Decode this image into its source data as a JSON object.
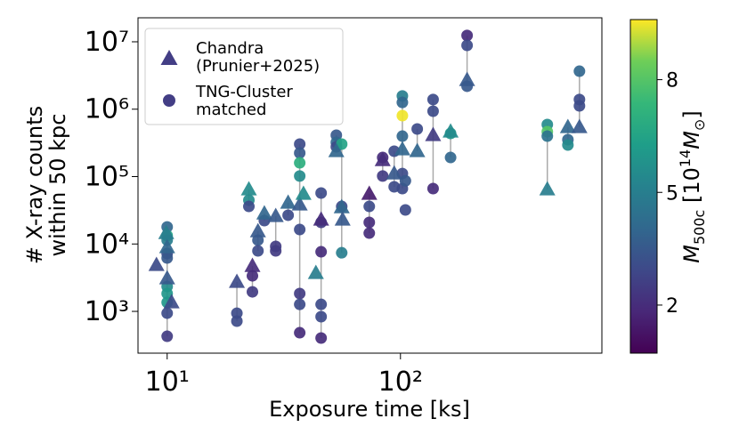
{
  "chart_data": {
    "type": "scatter",
    "xlabel": "Exposure time [ks]",
    "ylabel": "# X-ray counts\nwithin 50 kpc",
    "xscale": "log",
    "yscale": "log",
    "xlim": [
      7.5,
      730
    ],
    "ylim": [
      240,
      22700000
    ],
    "xticks": [
      {
        "value": 10,
        "label": "10¹"
      },
      {
        "value": 100,
        "label": "10²"
      }
    ],
    "yticks": [
      {
        "value": 1000,
        "label": "10³"
      },
      {
        "value": 10000,
        "label": "10⁴"
      },
      {
        "value": 100000,
        "label": "10⁵"
      },
      {
        "value": 1000000,
        "label": "10⁶"
      },
      {
        "value": 10000000,
        "label": "10⁷"
      }
    ],
    "colormap": "viridis",
    "clim": [
      0.72,
      9.6
    ],
    "cticks": [
      2,
      5,
      8
    ],
    "colorbar_label": [
      {
        "text": "M"
      },
      {
        "text": "500c",
        "sub": true
      },
      {
        "text": " [10"
      },
      {
        "text": "14",
        "sup": true
      },
      {
        "text": "M"
      },
      {
        "text": "⊙",
        "sub": true
      },
      {
        "text": "]"
      }
    ],
    "legend": "upper left",
    "series": [
      {
        "name": "Chandra\n(Prunier+2025)",
        "marker": "triangle",
        "color": "#433e85",
        "x": [
          9.0,
          9.91,
          10,
          10,
          10.45,
          19.9,
          22.4,
          23.2,
          24.5,
          26.1,
          29.2,
          33.0,
          37.0,
          38.4,
          45.7,
          43.4,
          53.1,
          56.0,
          56.5,
          73.5,
          83.9,
          94.0,
          101.9,
          118,
          138,
          164,
          193,
          426,
          522,
          585
        ],
        "y": [
          4860,
          14500,
          8920,
          3080,
          1360,
          2730,
          64400,
          4710,
          15400,
          28300,
          25900,
          40800,
          38400,
          55300,
          22900,
          3700,
          238000,
          35000,
          22900,
          55300,
          175000,
          111000,
          253000,
          238000,
          411000,
          464000,
          2700000,
          64400,
          541000,
          541000
        ],
        "c": [
          3,
          5,
          4,
          3.5,
          3,
          3,
          5.5,
          2,
          3.5,
          4,
          3.5,
          4,
          3.5,
          5.5,
          2,
          5,
          4,
          4,
          3.5,
          1.5,
          2,
          3.5,
          4,
          4,
          2.5,
          5.5,
          3.5,
          5,
          4,
          3.5
        ]
      },
      {
        "name": "TNG-Cluster\nmatched",
        "marker": "circle",
        "color": "#433e85",
        "x": [
          10,
          10,
          10,
          10,
          10,
          10,
          10,
          10,
          10,
          10,
          19.9,
          19.9,
          22.4,
          22.4,
          23.2,
          23.2,
          24.5,
          24.5,
          26.1,
          29.2,
          29.2,
          33.0,
          37.0,
          37.0,
          37.0,
          37.0,
          37.0,
          37.0,
          37.0,
          37.0,
          45.7,
          45.7,
          45.7,
          45.7,
          45.7,
          45.7,
          53.1,
          53.1,
          53.1,
          56.0,
          56.0,
          56.0,
          73.5,
          73.5,
          73.5,
          83.9,
          83.9,
          94.0,
          94.0,
          101.9,
          101.9,
          101.9,
          101.9,
          101.9,
          101.9,
          105,
          105,
          118,
          138,
          138,
          138,
          164,
          164,
          193,
          193,
          193,
          426,
          426,
          426,
          522,
          522,
          585,
          585,
          585
        ],
        "y": [
          17900,
          13300,
          11400,
          7210,
          6200,
          2340,
          1840,
          1360,
          940,
          427,
          940,
          716,
          44700,
          36100,
          3370,
          1950,
          11400,
          7900,
          22200,
          9200,
          7900,
          26700,
          303000,
          224000,
          160000,
          102000,
          16400,
          1840,
          1270,
          482,
          57000,
          20900,
          7660,
          1270,
          834,
          402,
          411000,
          322000,
          277000,
          303000,
          36100,
          7400,
          36100,
          20900,
          14500,
          192000,
          102000,
          238000,
          70500,
          1570000,
          1260000,
          802000,
          398000,
          111000,
          66400,
          86500,
          32000,
          508000,
          1390000,
          934000,
          66400,
          437000,
          192000,
          12400000,
          8850000,
          2190000,
          592000,
          464000,
          398000,
          353000,
          294000,
          3660000,
          1390000,
          1120000
        ],
        "c": [
          4,
          6.5,
          5,
          3,
          3.5,
          5.5,
          6,
          6,
          3,
          2.5,
          3,
          3,
          5.5,
          3,
          2,
          2.5,
          3.5,
          3,
          3,
          2.5,
          2.5,
          3,
          3,
          3.5,
          7,
          5.5,
          3,
          2.5,
          3,
          2,
          3,
          2.5,
          2,
          3,
          3,
          2,
          3.5,
          4,
          3,
          6.5,
          3,
          5,
          3,
          2,
          2,
          2,
          2.5,
          3,
          3,
          5,
          4,
          9.5,
          4,
          3,
          3,
          3.5,
          3,
          3,
          3,
          3,
          2,
          6,
          4,
          2,
          3,
          3.5,
          5.5,
          8,
          4.5,
          4,
          5.5,
          4,
          3,
          3
        ]
      }
    ]
  }
}
